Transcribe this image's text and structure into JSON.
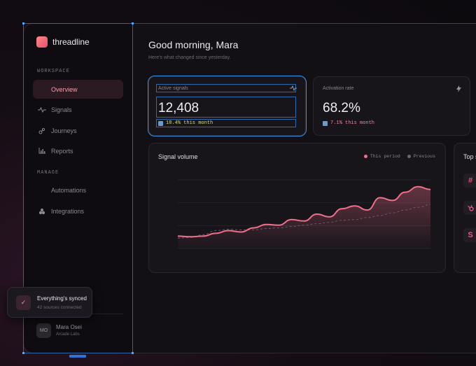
{
  "app": {
    "brand": "threadline"
  },
  "sidebar": {
    "workspace_label": "WORKSPACE",
    "manage_label": "MANAGE",
    "items": [
      {
        "label": "Overview",
        "icon": "none",
        "active": true
      },
      {
        "label": "Signals",
        "icon": "wave-icon"
      },
      {
        "label": "Journeys",
        "icon": "journey-icon"
      },
      {
        "label": "Reports",
        "icon": "bar-chart-icon"
      },
      {
        "label": "Automations",
        "icon": "none"
      },
      {
        "label": "Integrations",
        "icon": "puzzle-icon"
      }
    ],
    "user": {
      "initials": "MO",
      "name": "Mara Osei",
      "org": "Arcade Labs"
    }
  },
  "header": {
    "greeting": "Good morning, Mara",
    "subtitle": "Here's what changed since yesterday."
  },
  "metrics": [
    {
      "label": "Active signals",
      "value": "12,408",
      "delta": "18.4% this month",
      "delta_color": "#c8e07a",
      "icon": "wave-icon"
    },
    {
      "label": "Activation rate",
      "value": "68.2%",
      "delta": "7.1% this month",
      "delta_color": "#f08aa0",
      "icon": "bolt-icon"
    }
  ],
  "chart_card": {
    "title": "Signal volume",
    "legend": [
      {
        "name": "This period",
        "color": "#f0708a"
      },
      {
        "name": "Previous",
        "color": "#6c6570"
      }
    ]
  },
  "chart_data": {
    "type": "area",
    "title": "Signal volume",
    "xlabel": "",
    "ylabel": "",
    "ylim": [
      0,
      100
    ],
    "grid": true,
    "legend_placement": "top-right",
    "series": [
      {
        "name": "This period",
        "values": [
          18,
          17,
          18,
          22,
          26,
          24,
          30,
          35,
          34,
          42,
          40,
          50,
          46,
          58,
          62,
          56,
          74,
          70,
          82,
          90,
          86
        ]
      },
      {
        "name": "Previous",
        "values": [
          15,
          16,
          20,
          26,
          28,
          27,
          27,
          29,
          30,
          32,
          34,
          36,
          38,
          41,
          42,
          45,
          48,
          52,
          56,
          60,
          64
        ]
      }
    ]
  },
  "top_sources": {
    "title": "Top s"
  },
  "toast": {
    "title": "Everything's synced",
    "subtitle": "42 sources connected"
  },
  "colors": {
    "accent": "#f0708a",
    "selection": "#3d8ee6"
  }
}
